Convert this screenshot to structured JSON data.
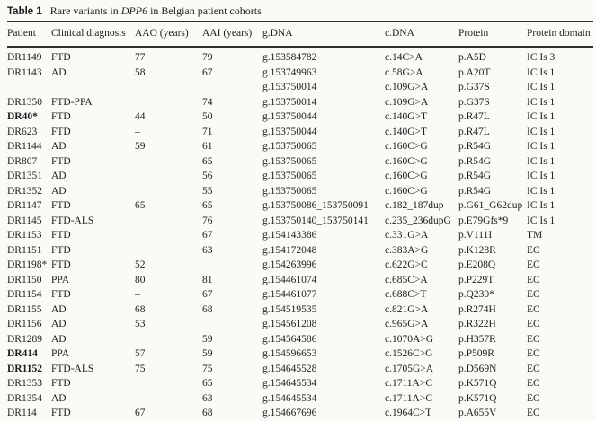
{
  "title": {
    "label": "Table 1",
    "text_before_gene": "Rare variants in ",
    "gene": "DPP6",
    "text_after_gene": " in Belgian patient cohorts"
  },
  "table": {
    "columns": [
      "Patient",
      "Clinical diagnosis",
      "AAO (years)",
      "AAI (years)",
      "g.DNA",
      "c.DNA",
      "Protein",
      "Protein domain"
    ],
    "rows": [
      {
        "patient": "DR1149",
        "bold": false,
        "diagnosis": "FTD",
        "aao": "77",
        "aai": "79",
        "gdna": "g.153584782",
        "cdna": "c.14C>A",
        "protein": "p.A5D",
        "domain": "IC Is 3"
      },
      {
        "patient": "DR1143",
        "bold": false,
        "diagnosis": "AD",
        "aao": "58",
        "aai": "67",
        "gdna": "g.153749963",
        "cdna": "c.58G>A",
        "protein": "p.A20T",
        "domain": "IC Is 1"
      },
      {
        "patient": "",
        "bold": false,
        "diagnosis": "",
        "aao": "",
        "aai": "",
        "gdna": "g.153750014",
        "cdna": "c.109G>A",
        "protein": "p.G37S",
        "domain": "IC Is 1"
      },
      {
        "patient": "DR1350",
        "bold": false,
        "diagnosis": "FTD-PPA",
        "aao": "",
        "aai": "74",
        "gdna": "g.153750014",
        "cdna": "c.109G>A",
        "protein": "p.G37S",
        "domain": "IC Is 1"
      },
      {
        "patient": "DR40*",
        "bold": true,
        "diagnosis": "FTD",
        "aao": "44",
        "aai": "50",
        "gdna": "g.153750044",
        "cdna": "c.140G>T",
        "protein": "p.R47L",
        "domain": "IC Is 1"
      },
      {
        "patient": "DR623",
        "bold": false,
        "diagnosis": "FTD",
        "aao": "–",
        "aai": "71",
        "gdna": "g.153750044",
        "cdna": "c.140G>T",
        "protein": "p.R47L",
        "domain": "IC Is 1"
      },
      {
        "patient": "DR1144",
        "bold": false,
        "diagnosis": "AD",
        "aao": "59",
        "aai": "61",
        "gdna": "g.153750065",
        "cdna": "c.160C>G",
        "protein": "p.R54G",
        "domain": "IC Is 1"
      },
      {
        "patient": "DR807",
        "bold": false,
        "diagnosis": "FTD",
        "aao": "",
        "aai": "65",
        "gdna": "g.153750065",
        "cdna": "c.160C>G",
        "protein": "p.R54G",
        "domain": "IC Is 1"
      },
      {
        "patient": "DR1351",
        "bold": false,
        "diagnosis": "AD",
        "aao": "",
        "aai": "56",
        "gdna": "g.153750065",
        "cdna": "c.160C>G",
        "protein": "p.R54G",
        "domain": "IC Is 1"
      },
      {
        "patient": "DR1352",
        "bold": false,
        "diagnosis": "AD",
        "aao": "",
        "aai": "55",
        "gdna": "g.153750065",
        "cdna": "c.160C>G",
        "protein": "p.R54G",
        "domain": "IC Is 1"
      },
      {
        "patient": "DR1147",
        "bold": false,
        "diagnosis": "FTD",
        "aao": "65",
        "aai": "65",
        "gdna": "g.153750086_153750091",
        "cdna": "c.182_187dup",
        "protein": "p.G61_G62dup",
        "domain": "IC Is 1"
      },
      {
        "patient": "DR1145",
        "bold": false,
        "diagnosis": "FTD-ALS",
        "aao": "",
        "aai": "76",
        "gdna": "g.153750140_153750141",
        "cdna": "c.235_236dupG",
        "protein": "p.E79Gfs*9",
        "domain": "IC Is 1"
      },
      {
        "patient": "DR1153",
        "bold": false,
        "diagnosis": "FTD",
        "aao": "",
        "aai": "67",
        "gdna": "g.154143386",
        "cdna": "c.331G>A",
        "protein": "p.V111I",
        "domain": "TM"
      },
      {
        "patient": "DR1151",
        "bold": false,
        "diagnosis": "FTD",
        "aao": "",
        "aai": "63",
        "gdna": "g.154172048",
        "cdna": "c.383A>G",
        "protein": "p.K128R",
        "domain": "EC"
      },
      {
        "patient": "DR1198*",
        "bold": false,
        "diagnosis": "FTD",
        "aao": "52",
        "aai": "",
        "gdna": "g.154263996",
        "cdna": "c.622G>C",
        "protein": "p.E208Q",
        "domain": "EC"
      },
      {
        "patient": "DR1150",
        "bold": false,
        "diagnosis": "PPA",
        "aao": "80",
        "aai": "81",
        "gdna": "g.154461074",
        "cdna": "c.685C>A",
        "protein": "p.P229T",
        "domain": "EC"
      },
      {
        "patient": "DR1154",
        "bold": false,
        "diagnosis": "FTD",
        "aao": "–",
        "aai": "67",
        "gdna": "g.154461077",
        "cdna": "c.688C>T",
        "protein": "p.Q230*",
        "domain": "EC"
      },
      {
        "patient": "DR1155",
        "bold": false,
        "diagnosis": "AD",
        "aao": "68",
        "aai": "68",
        "gdna": "g.154519535",
        "cdna": "c.821G>A",
        "protein": "p.R274H",
        "domain": "EC"
      },
      {
        "patient": "DR1156",
        "bold": false,
        "diagnosis": "AD",
        "aao": "53",
        "aai": "",
        "gdna": "g.154561208",
        "cdna": "c.965G>A",
        "protein": "p.R322H",
        "domain": "EC"
      },
      {
        "patient": "DR1289",
        "bold": false,
        "diagnosis": "AD",
        "aao": "",
        "aai": "59",
        "gdna": "g.154564586",
        "cdna": "c.1070A>G",
        "protein": "p.H357R",
        "domain": "EC"
      },
      {
        "patient": "DR414",
        "bold": true,
        "diagnosis": "PPA",
        "aao": "57",
        "aai": "59",
        "gdna": "g.154596653",
        "cdna": "c.1526C>G",
        "protein": "p.P509R",
        "domain": "EC"
      },
      {
        "patient": "DR1152",
        "bold": true,
        "diagnosis": "FTD-ALS",
        "aao": "75",
        "aai": "75",
        "gdna": "g.154645528",
        "cdna": "c.1705G>A",
        "protein": "p.D569N",
        "domain": "EC"
      },
      {
        "patient": "DR1353",
        "bold": false,
        "diagnosis": "FTD",
        "aao": "",
        "aai": "65",
        "gdna": "g.154645534",
        "cdna": "c.1711A>C",
        "protein": "p.K571Q",
        "domain": "EC"
      },
      {
        "patient": "DR1354",
        "bold": false,
        "diagnosis": "AD",
        "aao": "",
        "aai": "63",
        "gdna": "g.154645534",
        "cdna": "c.1711A>C",
        "protein": "p.K571Q",
        "domain": "EC"
      },
      {
        "patient": "DR114",
        "bold": false,
        "diagnosis": "FTD",
        "aao": "67",
        "aai": "68",
        "gdna": "g.154667696",
        "cdna": "c.1964C>T",
        "protein": "p.A655V",
        "domain": "EC"
      }
    ]
  }
}
